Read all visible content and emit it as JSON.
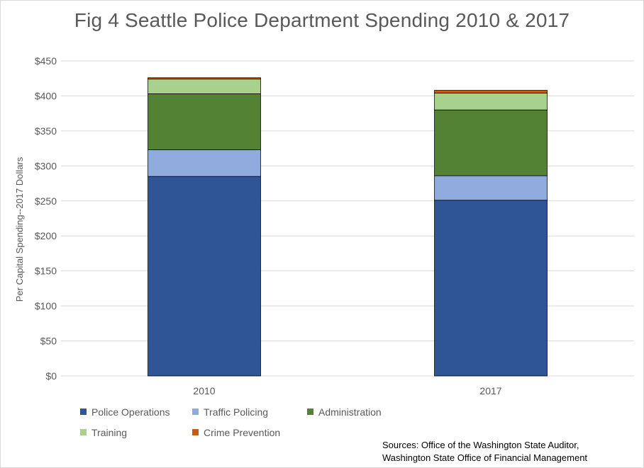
{
  "chart_data": {
    "type": "bar",
    "stacked": true,
    "title": "Fig 4 Seattle Police Department Spending 2010 & 2017",
    "ylabel": "Per Capital Spending--2017 Dollars",
    "xlabel": "",
    "categories": [
      "2010",
      "2017"
    ],
    "ylim": [
      0,
      450
    ],
    "yticks": [
      0,
      50,
      100,
      150,
      200,
      250,
      300,
      350,
      400,
      450
    ],
    "ytick_labels": [
      "$0",
      "$50",
      "$100",
      "$150",
      "$200",
      "$250",
      "$300",
      "$350",
      "$400",
      "$450"
    ],
    "grid": true,
    "legend_position": "bottom",
    "series": [
      {
        "name": "Police Operations",
        "color": "#2f5597",
        "values": [
          285,
          251
        ]
      },
      {
        "name": "Traffic Policing",
        "color": "#8faadc",
        "values": [
          38,
          35
        ]
      },
      {
        "name": "Administration",
        "color": "#548235",
        "values": [
          80,
          94
        ]
      },
      {
        "name": "Training",
        "color": "#a9d18e",
        "values": [
          21,
          24
        ]
      },
      {
        "name": "Crime Prevention",
        "color": "#c55a11",
        "values": [
          2,
          4
        ]
      }
    ]
  },
  "sources": {
    "line1": "Sources: Office of the Washington State Auditor,",
    "line2": "Washington State Office of Financial Management"
  }
}
